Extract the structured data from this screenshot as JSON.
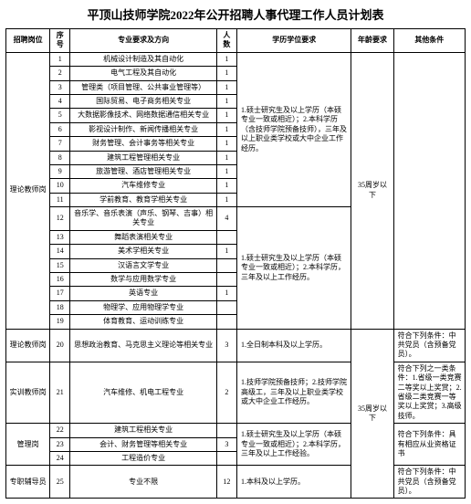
{
  "title": "平顶山技师学院2022年公开招聘人事代理工作人员计划表",
  "headers": {
    "position": "招聘岗位",
    "seq": "序号",
    "major": "专业要求及方向",
    "count": "人数",
    "education": "学历学位要求",
    "age": "年龄要求",
    "other": "其他条件"
  },
  "rows": [
    {
      "seq": "1",
      "major": "机械设计制造及其自动化",
      "count": "1"
    },
    {
      "seq": "2",
      "major": "电气工程及其自动化",
      "count": "1"
    },
    {
      "seq": "3",
      "major": "管理类（项目管理、公共事业管理等）",
      "count": "1"
    },
    {
      "seq": "4",
      "major": "国际贸易、电子商务相关专业",
      "count": "1"
    },
    {
      "seq": "5",
      "major": "大数据影像技术、网络数据通信相关专业",
      "count": "1"
    },
    {
      "seq": "6",
      "major": "影视设计制作、新闻传播相关专业",
      "count": "1"
    },
    {
      "seq": "7",
      "major": "财务管理、会计事务等相关专业",
      "count": "1"
    },
    {
      "seq": "8",
      "major": "建筑工程管理相关专业",
      "count": "1"
    },
    {
      "seq": "9",
      "major": "旅游管理、酒店管理相关专业",
      "count": "1"
    },
    {
      "seq": "10",
      "major": "汽车维修专业",
      "count": "1"
    },
    {
      "seq": "11",
      "major": "学前教育、教育学相关专业",
      "count": "1"
    },
    {
      "seq": "12",
      "major": "音乐学、音乐表演（声乐、钢琴、吉事）相关专业",
      "count": "4"
    },
    {
      "seq": "13",
      "major": "舞蹈表演相关专业",
      "count": ""
    },
    {
      "seq": "14",
      "major": "美术学相关专业",
      "count": "1"
    },
    {
      "seq": "15",
      "major": "汉语言文学专业",
      "count": ""
    },
    {
      "seq": "16",
      "major": "数学与应用数学专业",
      "count": ""
    },
    {
      "seq": "17",
      "major": "英语专业",
      "count": "1"
    },
    {
      "seq": "18",
      "major": "物理学、应用物理学专业",
      "count": ""
    },
    {
      "seq": "19",
      "major": "体育教育、运动训练专业",
      "count": ""
    }
  ],
  "position_theory": "理论教师岗",
  "edu_req_1_11": "1.硕士研究生及以上学历（本硕专业一致或相近）；2.本科学历（含技师学院预备技师），三年及以上职业类学校或大中企业工作经历。",
  "edu_req_12_19": "1.硕士研究生及以上学历（本硕专业一致或相近）；2.本科学历，三年及以上工作经历。",
  "age_req": "35周岁以下",
  "row20": {
    "position": "理论教师岗",
    "seq": "20",
    "major": "思想政治教育、马克思主义理论等相关专业",
    "count": "3",
    "edu": "1.全日制本科及以上学历。",
    "other": "符合下列条件：中共党员（含预备党员）。"
  },
  "row21": {
    "position": "实训教师岗",
    "seq": "21",
    "major": "汽车维修、机电工程专业",
    "count": "2",
    "edu": "1.技师学院预备技师；2.技师学院高级工，三年及以上职业类学校或大中企业工作经历。",
    "other": "符合下列之一类条件：1.省级一类竞赛二等奖以上奖赏；2.省级二类竞赛一等奖以上奖赏；3.高级技师。"
  },
  "row22": {
    "seq": "22",
    "major": "建筑工程相关专业",
    "count": ""
  },
  "row23": {
    "position": "管理岗",
    "seq": "23",
    "major": "会计、财务管理等相关专业",
    "count": "3",
    "edu": "1.硕士研究生及以上学历（本硕专业一致或相近）；2.本科学历，三年及以上工作经验。",
    "other": "符合下列条件：具有相应从业资格证书"
  },
  "row24": {
    "seq": "24",
    "major": "工程造价专业",
    "count": ""
  },
  "row25": {
    "position": "专职辅导员",
    "seq": "25",
    "major": "专业不限",
    "count": "12",
    "edu": "1.本科及以上学历。",
    "other": "符合下列条件：中共党员（含预备党员）。"
  },
  "age_req2": "35周岁以下"
}
